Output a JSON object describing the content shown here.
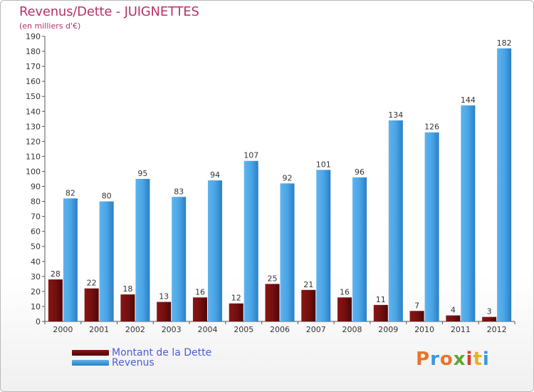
{
  "title": "Revenus/Dette - JUIGNETTES",
  "subtitle": "(en milliers d'€)",
  "colors": {
    "dette": "#6b0a0a",
    "revenus": "#3a98dc",
    "title": "#b5336b",
    "legend_text": "#4a5bd9"
  },
  "legend": [
    {
      "label": "Montant de la Dette",
      "color": "#6b0a0a"
    },
    {
      "label": "Revenus",
      "color": "#3a98dc"
    }
  ],
  "logo": {
    "text": "Proxiti",
    "letter_colors": [
      "#e8742b",
      "#3a98dc",
      "#e8742b",
      "#5aa832",
      "#d93c2d",
      "#e8b022",
      "#3a98dc"
    ]
  },
  "chart_data": {
    "type": "bar",
    "title": "Revenus/Dette - JUIGNETTES",
    "subtitle": "(en milliers d'€)",
    "categories": [
      "2000",
      "2001",
      "2002",
      "2003",
      "2004",
      "2005",
      "2006",
      "2007",
      "2008",
      "2009",
      "2010",
      "2011",
      "2012"
    ],
    "series": [
      {
        "name": "Montant de la Dette",
        "values": [
          28,
          22,
          18,
          13,
          16,
          12,
          25,
          21,
          16,
          11,
          7,
          4,
          3
        ]
      },
      {
        "name": "Revenus",
        "values": [
          82,
          80,
          95,
          83,
          94,
          107,
          92,
          101,
          96,
          134,
          126,
          144,
          182
        ]
      }
    ],
    "ylim": [
      0,
      190
    ],
    "ytick_step": 10,
    "xlabel": "",
    "ylabel": "",
    "grid": false,
    "legend_position": "bottom-left",
    "data_labels": true
  }
}
